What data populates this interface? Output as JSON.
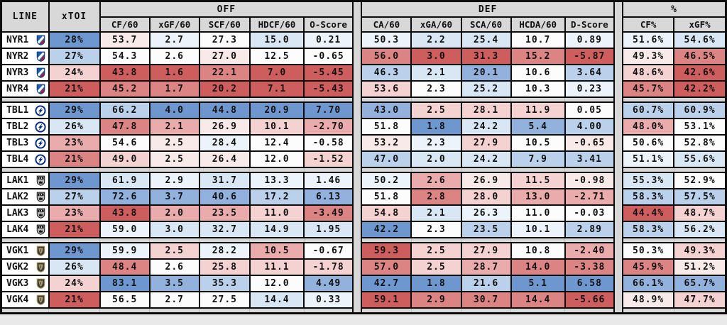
{
  "colors": {
    "page_bg": "#e9e9e9",
    "header_bg": "#d8d8d8",
    "border": "#0c0c0c",
    "cell_text": "#111111",
    "separator_bg": "#d8d8d8"
  },
  "palette": {
    "+4": "#6E97D0",
    "+3": "#92B1DD",
    "+2": "#BBD0EA",
    "+1": "#D9E6F4",
    "+0.5": "#ECF3FA",
    "0": "#FCFCFC",
    "-0.5": "#F9EAEA",
    "-1": "#F4D2D2",
    "-2": "#E9ABAB",
    "-3": "#DC8484",
    "-4": "#CE5D5D"
  },
  "chart_data": {
    "type": "heatmap-table",
    "header": {
      "line": "LINE",
      "xtoi": "xTOI",
      "groups": {
        "off": "OFF",
        "def": "DEF",
        "pct": "%"
      },
      "off_cols": [
        "CF/60",
        "xGF/60",
        "SCF/60",
        "HDCF/60",
        "O-Score"
      ],
      "def_cols": [
        "CA/60",
        "xGA/60",
        "SCA/60",
        "HCDA/60",
        "D-Score"
      ],
      "pct_cols": [
        "CF%",
        "xGF%"
      ]
    },
    "teams": [
      {
        "team": "NYR",
        "logo_colors": {
          "primary": "#1f5fae",
          "secondary": "#ffffff",
          "accent": "#c8102e",
          "outline": "#123e7a"
        },
        "lines": [
          {
            "label": "NYR1",
            "xtoi": "28%",
            "xtoi_lvl": "+4",
            "off": [
              "53.7",
              "2.7",
              "27.3",
              "15.0",
              "0.21"
            ],
            "off_lvl": [
              "-0.5",
              "+0.5",
              "0",
              "+1",
              "+0.5"
            ],
            "def": [
              "50.3",
              "2.2",
              "25.4",
              "10.7",
              "0.89"
            ],
            "def_lvl": [
              "+0.5",
              "+1",
              "+1",
              "0",
              "+0.5"
            ],
            "pct": [
              "51.6%",
              "54.6%"
            ],
            "pct_lvl": [
              "+0.5",
              "+1"
            ]
          },
          {
            "label": "NYR2",
            "xtoi": "27%",
            "xtoi_lvl": "+2",
            "off": [
              "54.3",
              "2.6",
              "27.0",
              "12.5",
              "-0.65"
            ],
            "off_lvl": [
              "0",
              "0",
              "-0.5",
              "0",
              "0"
            ],
            "def": [
              "56.0",
              "3.0",
              "31.3",
              "15.2",
              "-5.87"
            ],
            "def_lvl": [
              "-3",
              "-4",
              "-4",
              "-3",
              "-4"
            ],
            "pct": [
              "49.3%",
              "46.5%"
            ],
            "pct_lvl": [
              "-0.5",
              "-3"
            ]
          },
          {
            "label": "NYR3",
            "xtoi": "24%",
            "xtoi_lvl": "-1",
            "off": [
              "43.8",
              "1.6",
              "22.1",
              "7.0",
              "-5.45"
            ],
            "off_lvl": [
              "-4",
              "-4",
              "-3",
              "-4",
              "-4"
            ],
            "def": [
              "46.3",
              "2.1",
              "20.1",
              "10.6",
              "3.64"
            ],
            "def_lvl": [
              "+2",
              "+1",
              "+3",
              "0",
              "+2"
            ],
            "pct": [
              "48.6%",
              "42.6%"
            ],
            "pct_lvl": [
              "-1",
              "-4"
            ]
          },
          {
            "label": "NYR4",
            "xtoi": "21%",
            "xtoi_lvl": "-4",
            "off": [
              "45.2",
              "1.7",
              "20.2",
              "7.1",
              "-5.43"
            ],
            "off_lvl": [
              "-3",
              "-3",
              "-4",
              "-4",
              "-4"
            ],
            "def": [
              "53.6",
              "2.3",
              "25.2",
              "10.3",
              "0.23"
            ],
            "def_lvl": [
              "-1",
              "0",
              "+1",
              "0",
              "+0.5"
            ],
            "pct": [
              "45.7%",
              "42.2%"
            ],
            "pct_lvl": [
              "-3",
              "-4"
            ]
          }
        ]
      },
      {
        "team": "TBL",
        "logo_colors": {
          "primary": "#00287d",
          "secondary": "#ffffff",
          "accent": "#00287d",
          "outline": "#00287d"
        },
        "lines": [
          {
            "label": "TBL1",
            "xtoi": "29%",
            "xtoi_lvl": "+4",
            "off": [
              "66.2",
              "4.0",
              "44.8",
              "20.9",
              "7.70"
            ],
            "off_lvl": [
              "+2",
              "+4",
              "+4",
              "+4",
              "+4"
            ],
            "def": [
              "43.0",
              "2.5",
              "28.1",
              "11.9",
              "0.05"
            ],
            "def_lvl": [
              "+3",
              "-1",
              "-1",
              "-1",
              "0"
            ],
            "pct": [
              "60.7%",
              "60.9%"
            ],
            "pct_lvl": [
              "+2",
              "+2"
            ]
          },
          {
            "label": "TBL2",
            "xtoi": "26%",
            "xtoi_lvl": "+1",
            "off": [
              "47.8",
              "2.1",
              "26.9",
              "10.1",
              "-2.70"
            ],
            "off_lvl": [
              "-3",
              "-2",
              "-0.5",
              "-1",
              "-2"
            ],
            "def": [
              "51.8",
              "1.8",
              "24.2",
              "5.4",
              "4.00"
            ],
            "def_lvl": [
              "0",
              "+4",
              "+1",
              "+3",
              "+2"
            ],
            "pct": [
              "48.0%",
              "53.1%"
            ],
            "pct_lvl": [
              "-2",
              "0"
            ]
          },
          {
            "label": "TBL3",
            "xtoi": "23%",
            "xtoi_lvl": "-2",
            "off": [
              "54.6",
              "2.5",
              "28.4",
              "12.4",
              "-0.58"
            ],
            "off_lvl": [
              "0",
              "-0.5",
              "+0.5",
              "0",
              "0"
            ],
            "def": [
              "53.2",
              "2.3",
              "27.9",
              "10.5",
              "-0.65"
            ],
            "def_lvl": [
              "-0.5",
              "+0.5",
              "-1",
              "0",
              "-0.5"
            ],
            "pct": [
              "50.6%",
              "52.8%"
            ],
            "pct_lvl": [
              "0",
              "0"
            ]
          },
          {
            "label": "TBL4",
            "xtoi": "21%",
            "xtoi_lvl": "-3",
            "off": [
              "49.0",
              "2.5",
              "26.4",
              "12.0",
              "-1.52"
            ],
            "off_lvl": [
              "-1",
              "-0.5",
              "-0.5",
              "0",
              "-1"
            ],
            "def": [
              "47.0",
              "2.0",
              "24.2",
              "7.9",
              "3.41"
            ],
            "def_lvl": [
              "+2",
              "+1",
              "+1",
              "+2",
              "+2"
            ],
            "pct": [
              "51.1%",
              "55.6%"
            ],
            "pct_lvl": [
              "+0.5",
              "+1"
            ]
          }
        ]
      },
      {
        "team": "LAK",
        "logo_colors": {
          "primary": "#111111",
          "secondary": "#b9babc",
          "accent": "#111111",
          "outline": "#111111"
        },
        "lines": [
          {
            "label": "LAK1",
            "xtoi": "29%",
            "xtoi_lvl": "+4",
            "off": [
              "61.9",
              "2.9",
              "31.7",
              "13.3",
              "1.46"
            ],
            "off_lvl": [
              "+1",
              "+0.5",
              "+1",
              "+0.5",
              "+0.5"
            ],
            "def": [
              "50.2",
              "2.6",
              "26.9",
              "11.5",
              "-0.98"
            ],
            "def_lvl": [
              "+0.5",
              "-2",
              "-0.5",
              "-1",
              "-0.5"
            ],
            "pct": [
              "55.3%",
              "52.9%"
            ],
            "pct_lvl": [
              "+1",
              "0"
            ]
          },
          {
            "label": "LAK2",
            "xtoi": "27%",
            "xtoi_lvl": "+2",
            "off": [
              "72.6",
              "3.7",
              "40.6",
              "17.2",
              "6.13"
            ],
            "off_lvl": [
              "+3",
              "+3",
              "+3",
              "+2",
              "+3"
            ],
            "def": [
              "51.8",
              "2.8",
              "28.0",
              "13.0",
              "-2.71"
            ],
            "def_lvl": [
              "0",
              "-3",
              "-1",
              "-2",
              "-2"
            ],
            "pct": [
              "58.3%",
              "57.5%"
            ],
            "pct_lvl": [
              "+2",
              "+2"
            ]
          },
          {
            "label": "LAK3",
            "xtoi": "23%",
            "xtoi_lvl": "-2",
            "off": [
              "43.8",
              "2.0",
              "23.5",
              "11.0",
              "-3.49"
            ],
            "off_lvl": [
              "-4",
              "-2",
              "-2",
              "-1",
              "-3"
            ],
            "def": [
              "54.8",
              "2.1",
              "26.3",
              "11.0",
              "-0.03"
            ],
            "def_lvl": [
              "-1",
              "+1",
              "+0.5",
              "0",
              "0"
            ],
            "pct": [
              "44.4%",
              "48.7%"
            ],
            "pct_lvl": [
              "-4",
              "-1"
            ]
          },
          {
            "label": "LAK4",
            "xtoi": "21%",
            "xtoi_lvl": "-4",
            "off": [
              "59.0",
              "3.0",
              "32.7",
              "14.9",
              "1.95"
            ],
            "off_lvl": [
              "+0.5",
              "+1",
              "+1",
              "+1",
              "+1"
            ],
            "def": [
              "42.2",
              "2.3",
              "23.5",
              "10.1",
              "2.89"
            ],
            "def_lvl": [
              "+4",
              "0",
              "+2",
              "+0.5",
              "+2"
            ],
            "pct": [
              "58.3%",
              "56.2%"
            ],
            "pct_lvl": [
              "+2",
              "+1"
            ]
          }
        ]
      },
      {
        "team": "VGK",
        "logo_colors": {
          "primary": "#333f42",
          "secondary": "#b4975a",
          "accent": "#b4975a",
          "outline": "#b4975a"
        },
        "lines": [
          {
            "label": "VGK1",
            "xtoi": "29%",
            "xtoi_lvl": "+4",
            "off": [
              "59.9",
              "2.5",
              "28.2",
              "10.5",
              "-0.67"
            ],
            "off_lvl": [
              "+0.5",
              "-1",
              "+0.5",
              "-2",
              "0"
            ],
            "def": [
              "59.3",
              "2.5",
              "27.9",
              "10.8",
              "-2.40"
            ],
            "def_lvl": [
              "-4",
              "-1",
              "-1",
              "0",
              "-2"
            ],
            "pct": [
              "50.3%",
              "49.3%"
            ],
            "pct_lvl": [
              "0",
              "-1"
            ]
          },
          {
            "label": "VGK2",
            "xtoi": "26%",
            "xtoi_lvl": "+1",
            "off": [
              "48.4",
              "2.6",
              "25.8",
              "11.1",
              "-1.78"
            ],
            "off_lvl": [
              "-3",
              "0",
              "-1",
              "-1",
              "-1"
            ],
            "def": [
              "57.0",
              "2.5",
              "28.7",
              "14.0",
              "-3.38"
            ],
            "def_lvl": [
              "-3",
              "-1",
              "-2",
              "-3",
              "-3"
            ],
            "pct": [
              "45.9%",
              "51.2%"
            ],
            "pct_lvl": [
              "-3",
              "-0.5"
            ]
          },
          {
            "label": "VGK3",
            "xtoi": "24%",
            "xtoi_lvl": "-1",
            "off": [
              "83.1",
              "3.5",
              "35.3",
              "12.0",
              "4.49"
            ],
            "off_lvl": [
              "+4",
              "+3",
              "+2",
              "0",
              "+3"
            ],
            "def": [
              "42.7",
              "1.8",
              "21.6",
              "5.1",
              "6.58"
            ],
            "def_lvl": [
              "+4",
              "+4",
              "+2",
              "+4",
              "+4"
            ],
            "pct": [
              "66.1%",
              "65.7%"
            ],
            "pct_lvl": [
              "+3",
              "+3"
            ]
          },
          {
            "label": "VGK4",
            "xtoi": "21%",
            "xtoi_lvl": "-4",
            "off": [
              "56.5",
              "2.7",
              "27.5",
              "14.4",
              "0.33"
            ],
            "off_lvl": [
              "0",
              "0",
              "0",
              "+1",
              "+0.5"
            ],
            "def": [
              "59.1",
              "2.9",
              "30.7",
              "14.4",
              "-5.66"
            ],
            "def_lvl": [
              "-4",
              "-3",
              "-3",
              "-3",
              "-4"
            ],
            "pct": [
              "48.9%",
              "47.7%"
            ],
            "pct_lvl": [
              "-0.5",
              "-1"
            ]
          }
        ]
      }
    ]
  }
}
